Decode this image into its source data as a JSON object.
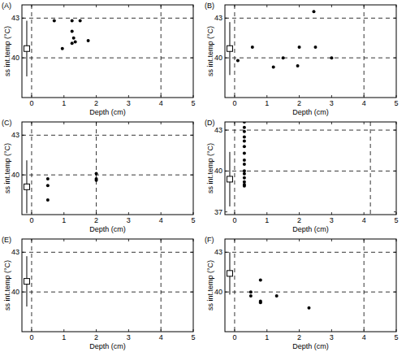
{
  "chart_data": [
    {
      "type": "scatter",
      "title": "(A)",
      "x_label": "Depth (cm)",
      "y_label": "ss int.temp (°C)",
      "x": [
        0.7,
        0.95,
        1.25,
        1.25,
        1.3,
        1.25,
        1.35,
        1.5,
        1.75
      ],
      "values": [
        42.8,
        40.7,
        42.8,
        42.0,
        41.5,
        41.1,
        41.2,
        42.8,
        41.3
      ],
      "mean_x": -0.15,
      "mean": 40.7,
      "mean_error": 2.1,
      "hlines": [
        40,
        43
      ],
      "vlines": [
        0,
        4
      ],
      "xlim": [
        -0.3,
        5
      ],
      "ylim": [
        37,
        44
      ],
      "xticks": [
        0,
        1,
        2,
        3,
        4,
        5
      ],
      "yticks": [
        40,
        43
      ]
    },
    {
      "type": "scatter",
      "title": "(B)",
      "x_label": "Depth (cm)",
      "y_label": "ss int.temp (°C)",
      "x": [
        0.1,
        0.55,
        1.2,
        1.5,
        1.95,
        2.0,
        2.45,
        2.5,
        3.0
      ],
      "values": [
        39.8,
        40.8,
        39.3,
        40.0,
        39.4,
        40.8,
        43.5,
        40.8,
        40.0
      ],
      "mean_x": -0.15,
      "mean": 40.7,
      "mean_error": 2.0,
      "hlines": [
        40,
        43
      ],
      "vlines": [
        0,
        4
      ],
      "xlim": [
        -0.3,
        5
      ],
      "ylim": [
        37,
        44
      ],
      "xticks": [
        0,
        1,
        2,
        3,
        4,
        5
      ],
      "yticks": [
        40,
        43
      ]
    },
    {
      "type": "scatter",
      "title": "(C)",
      "x_label": "Depth (cm)",
      "y_label": "ss int.temp (°C)",
      "x": [
        0.5,
        0.5,
        0.5,
        2.0,
        2.0,
        2.0
      ],
      "values": [
        39.7,
        39.2,
        38.1,
        40.1,
        39.7,
        39.6
      ],
      "mean_x": -0.15,
      "mean": 39.1,
      "mean_error": 2.0,
      "hlines": [
        40,
        43
      ],
      "vlines": [
        0,
        2
      ],
      "xlim": [
        -0.3,
        5
      ],
      "ylim": [
        37,
        44
      ],
      "xticks": [
        0,
        1,
        2,
        3,
        4,
        5
      ],
      "yticks": [
        40,
        43
      ]
    },
    {
      "type": "scatter",
      "title": "(D)",
      "x_label": "Depth (cm)",
      "y_label": "ss int.temp (°C)",
      "x": [
        0.3,
        0.3,
        0.3,
        0.3,
        0.3,
        0.3,
        0.3,
        0.3,
        0.3,
        0.3,
        0.3,
        0.3,
        0.3,
        0.3,
        0.3
      ],
      "values": [
        43.6,
        43.2,
        42.9,
        42.5,
        42.2,
        41.8,
        41.3,
        40.8,
        40.5,
        40.0,
        39.8,
        39.5,
        39.2,
        39.0,
        38.9
      ],
      "mean_x": -0.15,
      "mean": 39.4,
      "mean_error": 2.0,
      "hlines": [
        40,
        43
      ],
      "vlines": [
        0,
        4.2
      ],
      "xlim": [
        -0.3,
        5
      ],
      "ylim": [
        36.8,
        43.6
      ],
      "xticks": [
        0,
        1,
        2,
        3,
        4,
        5
      ],
      "yticks": [
        37,
        40,
        43
      ]
    },
    {
      "type": "scatter",
      "title": "(E)",
      "x_label": "Depth (cm)",
      "y_label": "ss int.temp (°C)",
      "x": [],
      "values": [],
      "mean_x": -0.15,
      "mean": 40.8,
      "mean_error": 1.9,
      "hlines": [
        40,
        43
      ],
      "vlines": [
        0,
        4
      ],
      "xlim": [
        -0.3,
        5
      ],
      "ylim": [
        37,
        44
      ],
      "xticks": [
        0,
        1,
        2,
        3,
        4,
        5
      ],
      "yticks": [
        40,
        43
      ]
    },
    {
      "type": "scatter",
      "title": "(F)",
      "x_label": "Depth (cm)",
      "y_label": "ss int.temp (°C)",
      "x": [
        0.5,
        0.5,
        0.8,
        0.8,
        0.8,
        1.3,
        2.3
      ],
      "values": [
        40.0,
        39.7,
        40.9,
        39.3,
        39.2,
        39.7,
        38.8
      ],
      "mean_x": -0.15,
      "mean": 41.4,
      "mean_error": 1.6,
      "hlines": [
        40,
        43
      ],
      "vlines": [
        0,
        4
      ],
      "xlim": [
        -0.3,
        5
      ],
      "ylim": [
        37,
        44
      ],
      "xticks": [
        0,
        1,
        2,
        3,
        4,
        5
      ],
      "yticks": [
        40,
        43
      ]
    }
  ]
}
